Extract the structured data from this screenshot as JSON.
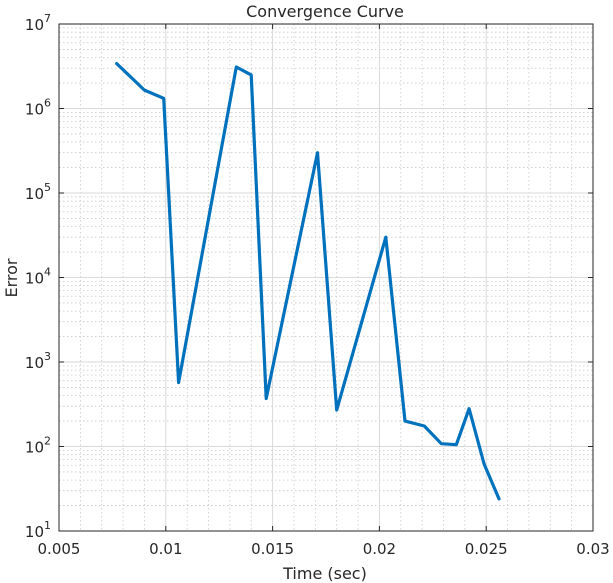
{
  "chart_data": {
    "type": "line",
    "title": "Convergence Curve",
    "xlabel": "Time (sec)",
    "ylabel": "Error",
    "xlim": [
      0.005,
      0.03
    ],
    "ylim": [
      10,
      10000000
    ],
    "yscale": "log",
    "grid": "on",
    "minor_grid": "on",
    "xticks": [
      0.005,
      0.01,
      0.015,
      0.02,
      0.025,
      0.03
    ],
    "xtick_labels": [
      "0.005",
      "0.01",
      "0.015",
      "0.02",
      "0.025",
      "0.03"
    ],
    "yticks": [
      10,
      100,
      1000,
      10000,
      100000,
      1000000,
      10000000
    ],
    "ytick_base": "10",
    "ytick_exponents": [
      "1",
      "2",
      "3",
      "4",
      "5",
      "6",
      "7"
    ],
    "series": [
      {
        "color": "#0072BD",
        "x": [
          0.0077,
          0.009,
          0.0099,
          0.0106,
          0.0133,
          0.014,
          0.0147,
          0.0171,
          0.018,
          0.0203,
          0.0212,
          0.0221,
          0.0229,
          0.0236,
          0.0242,
          0.0249,
          0.0256
        ],
        "y": [
          3400000,
          1650000,
          1320000,
          570,
          3100000,
          2500000,
          370,
          300000,
          270,
          30000,
          200,
          175,
          108,
          105,
          280,
          62,
          24
        ]
      }
    ]
  }
}
